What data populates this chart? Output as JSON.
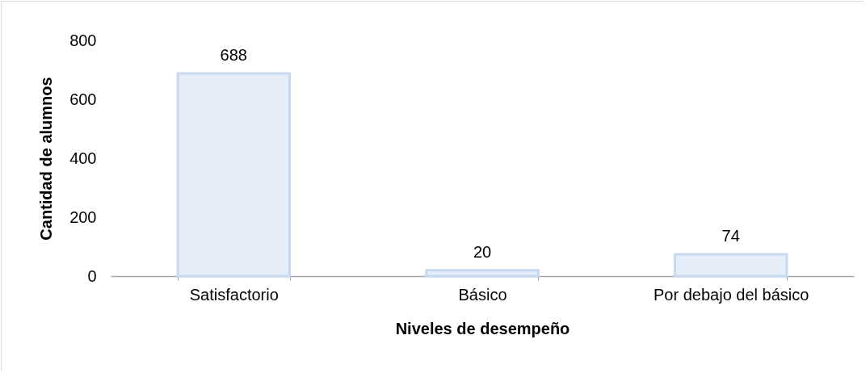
{
  "chart_data": {
    "type": "bar",
    "xlabel": "Niveles de desempeño",
    "ylabel": "Cantidad de alumnos",
    "categories": [
      "Satisfactorio",
      "Básico",
      "Por debajo del básico"
    ],
    "values": [
      688,
      20,
      74
    ],
    "color": "#c6d9f0",
    "ylim": [
      0,
      800
    ],
    "yticks": [
      0,
      200,
      400,
      600,
      800
    ],
    "grid": false,
    "data_labels": true
  }
}
